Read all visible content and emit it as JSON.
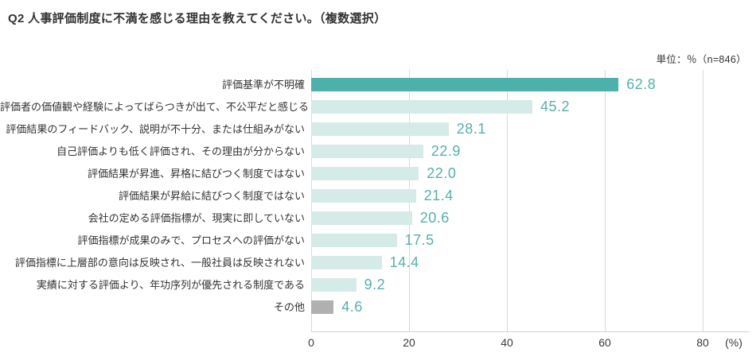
{
  "header": {
    "title": "Q2 人事評価制度に不満を感じる理由を教えてください。（複数選択）"
  },
  "unit_note": "単位：％（n=846）",
  "chart_data": {
    "type": "bar",
    "orientation": "horizontal",
    "title": "Q2 人事評価制度に不満を感じる理由を教えてください。（複数選択）",
    "unit_label": "単位：％（n=846）",
    "categories": [
      "評価基準が不明確",
      "評価者の価値観や経験によってばらつきが出て、不公平だと感じる",
      "評価結果のフィードバック、説明が不十分、または仕組みがない",
      "自己評価よりも低く評価され、その理由が分からない",
      "評価結果が昇進、昇格に結びつく制度ではない",
      "評価結果が昇給に結びつく制度ではない",
      "会社の定める評価指標が、現実に即していない",
      "評価指標が成果のみで、プロセスへの評価がない",
      "評価指標に上層部の意向は反映され、一般社員は反映されない",
      "実績に対する評価より、年功序列が優先される制度である",
      "その他"
    ],
    "values": [
      62.8,
      45.2,
      28.1,
      22.9,
      22.0,
      21.4,
      20.6,
      17.5,
      14.4,
      9.2,
      4.6
    ],
    "bars": [
      {
        "label": "評価基準が不明確",
        "value": 62.8,
        "display": "62.8",
        "color": "#4cb1aa"
      },
      {
        "label": "評価者の価値観や経験によってばらつきが出て、不公平だと感じる",
        "value": 45.2,
        "display": "45.2",
        "color": "#d5ebe8"
      },
      {
        "label": "評価結果のフィードバック、説明が不十分、または仕組みがない",
        "value": 28.1,
        "display": "28.1",
        "color": "#d5ebe8"
      },
      {
        "label": "自己評価よりも低く評価され、その理由が分からない",
        "value": 22.9,
        "display": "22.9",
        "color": "#d5ebe8"
      },
      {
        "label": "評価結果が昇進、昇格に結びつく制度ではない",
        "value": 22.0,
        "display": "22.0",
        "color": "#d5ebe8"
      },
      {
        "label": "評価結果が昇給に結びつく制度ではない",
        "value": 21.4,
        "display": "21.4",
        "color": "#d5ebe8"
      },
      {
        "label": "会社の定める評価指標が、現実に即していない",
        "value": 20.6,
        "display": "20.6",
        "color": "#d5ebe8"
      },
      {
        "label": "評価指標が成果のみで、プロセスへの評価がない",
        "value": 17.5,
        "display": "17.5",
        "color": "#d5ebe8"
      },
      {
        "label": "評価指標に上層部の意向は反映され、一般社員は反映されない",
        "value": 14.4,
        "display": "14.4",
        "color": "#d5ebe8"
      },
      {
        "label": "実績に対する評価より、年功序列が優先される制度である",
        "value": 9.2,
        "display": "9.2",
        "color": "#d5ebe8"
      },
      {
        "label": "その他",
        "value": 4.6,
        "display": "4.6",
        "color": "#b0b0b0"
      }
    ],
    "xticks": [
      "0",
      "20",
      "40",
      "60",
      "80"
    ],
    "xlabel": "(%)",
    "xlim": [
      0,
      89.6
    ],
    "grid": true,
    "legend": false,
    "colors": {
      "primary_bar": "#4cb1aa",
      "secondary_bar": "#d5ebe8",
      "other_bar": "#b0b0b0",
      "value_label": "#55b0aa",
      "gridline": "#ded9d3",
      "text": "#333333"
    }
  }
}
